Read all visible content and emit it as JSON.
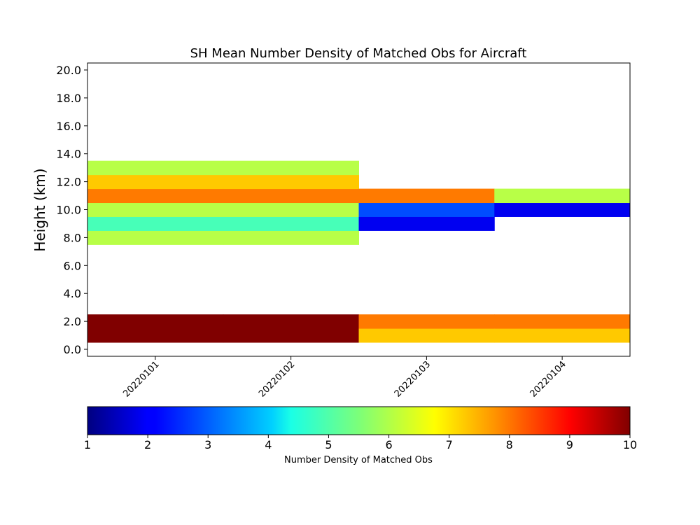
{
  "chart_data": {
    "type": "heatmap",
    "title": "SH Mean Number Density of Matched Obs for Aircraft",
    "xlabel": "",
    "ylabel": "Height (km)",
    "x_categories": [
      "20220101",
      "20220102",
      "20220103",
      "20220104"
    ],
    "y_ticks": [
      "0.0",
      "2.0",
      "4.0",
      "6.0",
      "8.0",
      "10.0",
      "12.0",
      "14.0",
      "16.0",
      "18.0",
      "20.0"
    ],
    "colorbar": {
      "label": "Number Density of Matched Obs",
      "range": [
        1,
        10
      ],
      "ticks": [
        "1",
        "2",
        "3",
        "4",
        "5",
        "6",
        "7",
        "8",
        "9",
        "10"
      ],
      "colormap": "jet"
    },
    "cells": [
      {
        "x": "20220101",
        "height": 1,
        "value": 10.0
      },
      {
        "x": "20220101",
        "height": 2,
        "value": 10.0
      },
      {
        "x": "20220101",
        "height": 8,
        "value": 6.0
      },
      {
        "x": "20220101",
        "height": 9,
        "value": 5.0
      },
      {
        "x": "20220101",
        "height": 10,
        "value": 6.0
      },
      {
        "x": "20220101",
        "height": 11,
        "value": 7.8
      },
      {
        "x": "20220101",
        "height": 12,
        "value": 7.1
      },
      {
        "x": "20220101",
        "height": 13,
        "value": 6.0
      },
      {
        "x": "20220102",
        "height": 1,
        "value": 10.0
      },
      {
        "x": "20220102",
        "height": 2,
        "value": 10.0
      },
      {
        "x": "20220102",
        "height": 8,
        "value": 6.0
      },
      {
        "x": "20220102",
        "height": 9,
        "value": 5.0
      },
      {
        "x": "20220102",
        "height": 10,
        "value": 6.0
      },
      {
        "x": "20220102",
        "height": 11,
        "value": 7.8
      },
      {
        "x": "20220102",
        "height": 12,
        "value": 7.1
      },
      {
        "x": "20220102",
        "height": 13,
        "value": 6.0
      },
      {
        "x": "20220103",
        "height": 1,
        "value": 7.1
      },
      {
        "x": "20220103",
        "height": 2,
        "value": 7.8
      },
      {
        "x": "20220103",
        "height": 9,
        "value": 2.0
      },
      {
        "x": "20220103",
        "height": 10,
        "value": 2.8
      },
      {
        "x": "20220103",
        "height": 11,
        "value": 7.8
      },
      {
        "x": "20220104",
        "height": 1,
        "value": 7.1
      },
      {
        "x": "20220104",
        "height": 2,
        "value": 7.8
      },
      {
        "x": "20220104",
        "height": 10,
        "value": 2.0
      },
      {
        "x": "20220104",
        "height": 11,
        "value": 6.0
      }
    ]
  }
}
